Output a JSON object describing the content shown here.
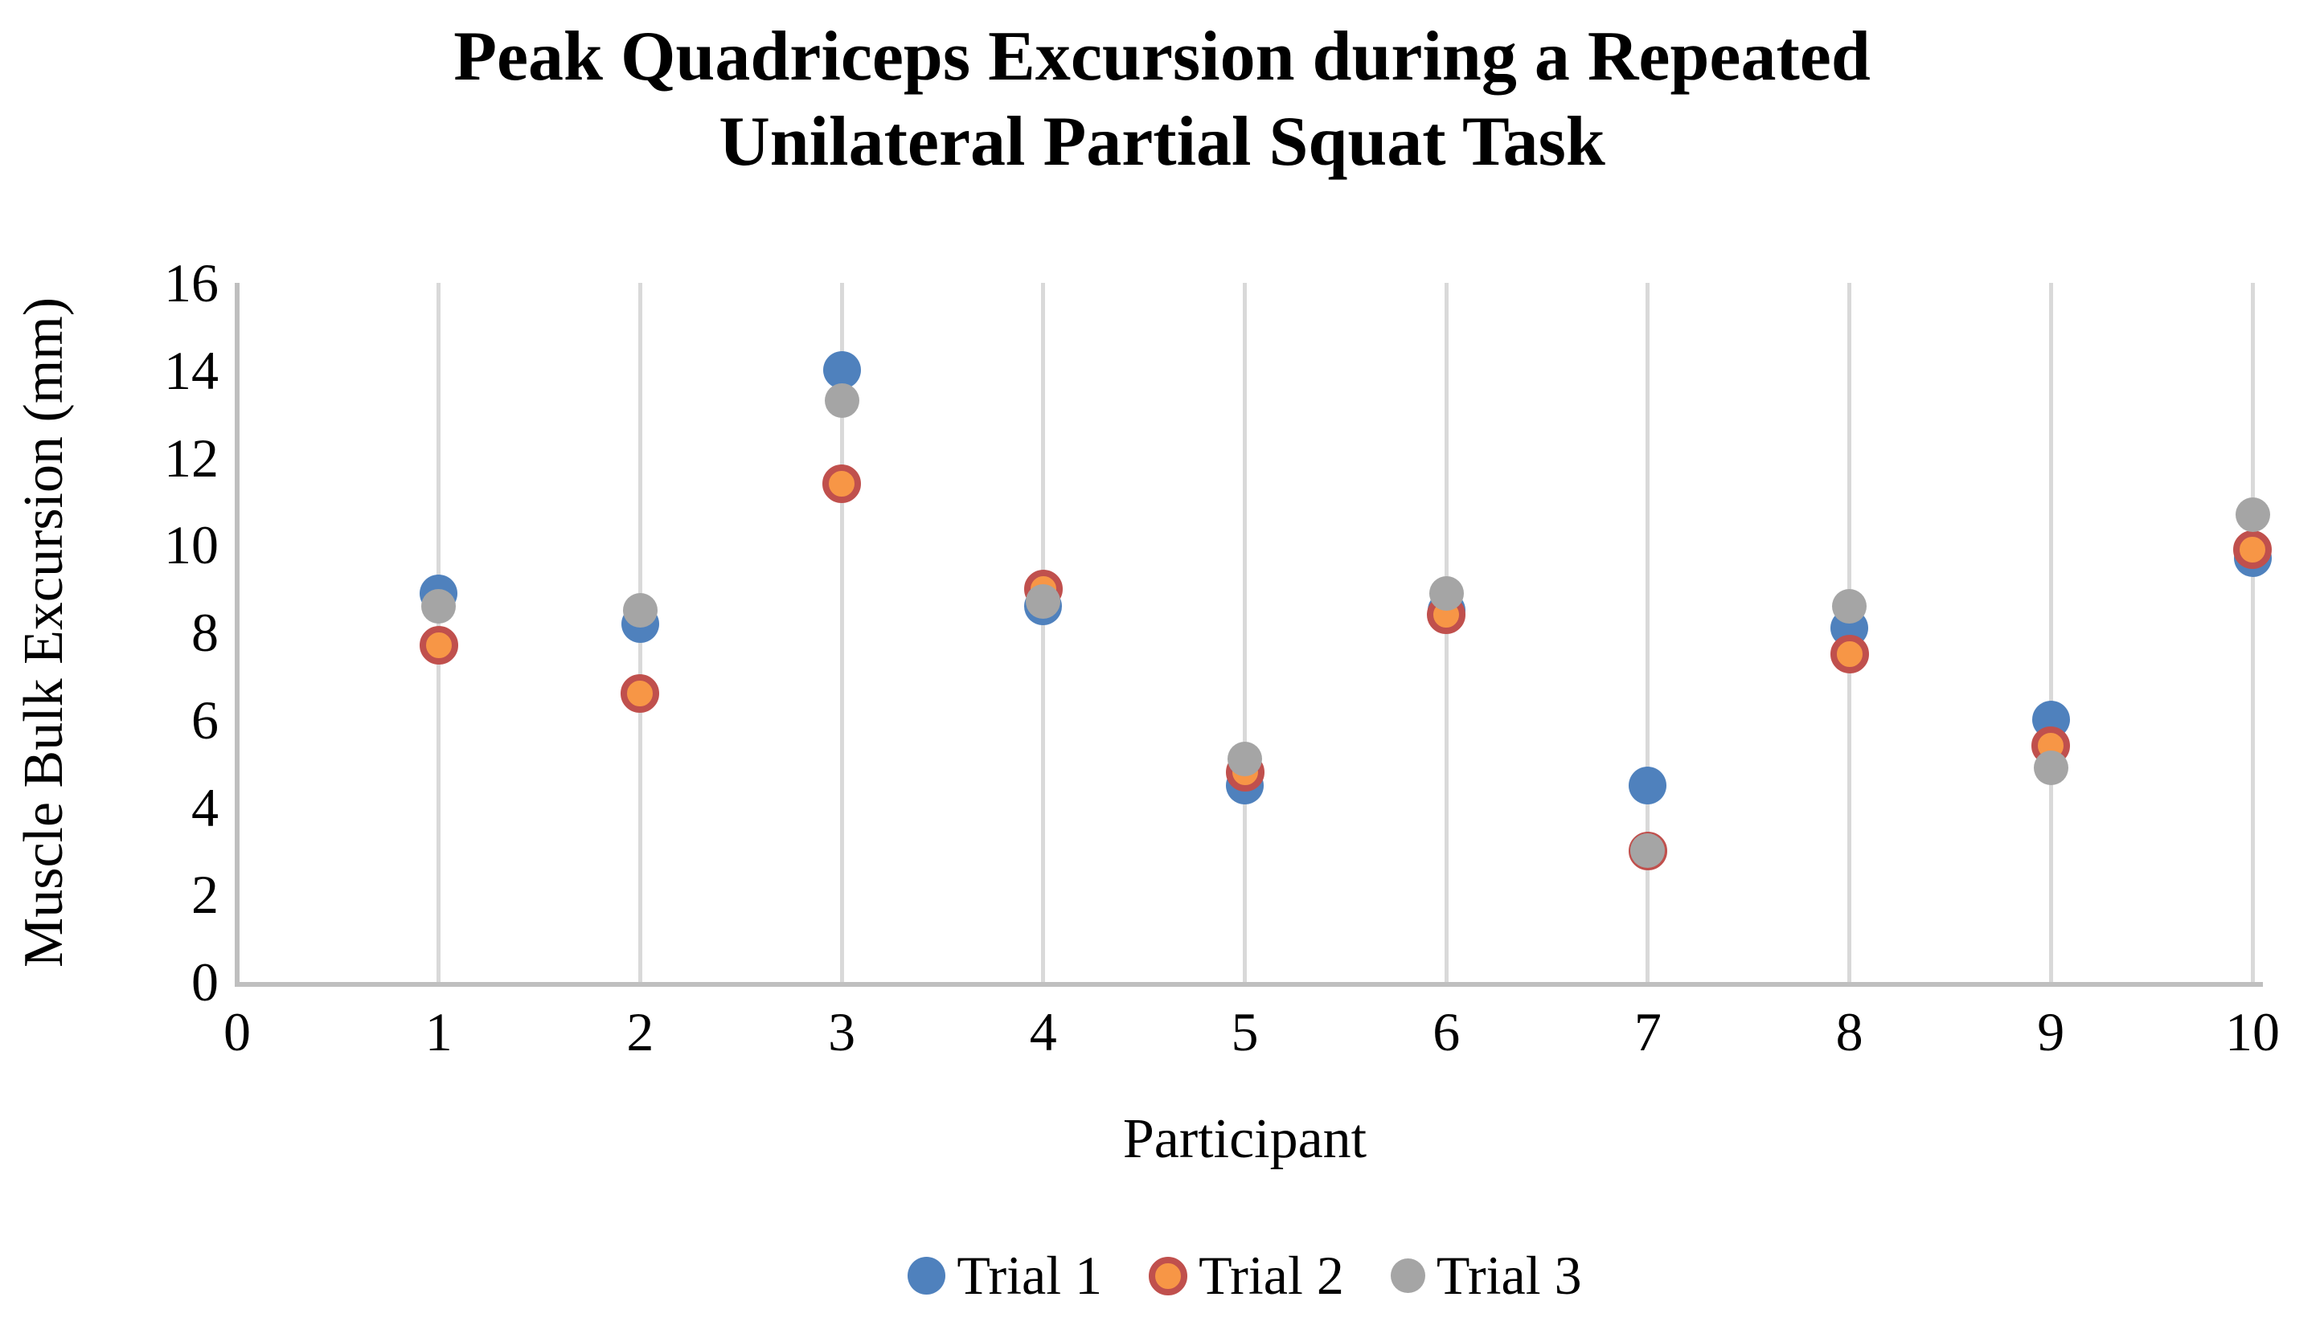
{
  "chart_data": {
    "type": "scatter",
    "title": "Peak Quadriceps Excursion during a Repeated Unilateral Partial Squat Task",
    "title_lines": [
      "Peak Quadriceps Excursion during a Repeated",
      "Unilateral Partial Squat Task"
    ],
    "xlabel": "Participant",
    "ylabel": "Muscle Bulk Excursion (mm)",
    "xlim": [
      0,
      10
    ],
    "ylim": [
      0,
      16
    ],
    "x_ticks": [
      0,
      1,
      2,
      3,
      4,
      5,
      6,
      7,
      8,
      9,
      10
    ],
    "y_ticks": [
      0,
      2,
      4,
      6,
      8,
      10,
      12,
      14,
      16
    ],
    "grid": "vertical-only",
    "legend_position": "bottom",
    "x": [
      1,
      2,
      3,
      4,
      5,
      6,
      7,
      8,
      9,
      10
    ],
    "series": [
      {
        "name": "Trial 1",
        "color": "#4F81BD",
        "values": [
          8.9,
          8.2,
          14.0,
          8.6,
          4.5,
          8.5,
          4.5,
          8.1,
          6.0,
          9.7
        ]
      },
      {
        "name": "Trial 2",
        "color": "#F79646",
        "border_color": "#C0504D",
        "values": [
          7.7,
          6.6,
          11.4,
          9.0,
          4.8,
          8.4,
          3.0,
          7.5,
          5.4,
          9.9
        ]
      },
      {
        "name": "Trial 3",
        "color": "#A5A5A5",
        "values": [
          8.6,
          8.5,
          13.3,
          8.7,
          5.1,
          8.9,
          3.0,
          8.6,
          4.9,
          10.7
        ]
      }
    ],
    "colors": {
      "gridline": "#D9D9D9",
      "axis_line": "#BFBFBF",
      "text": "#000000",
      "background": "#FFFFFF"
    }
  }
}
